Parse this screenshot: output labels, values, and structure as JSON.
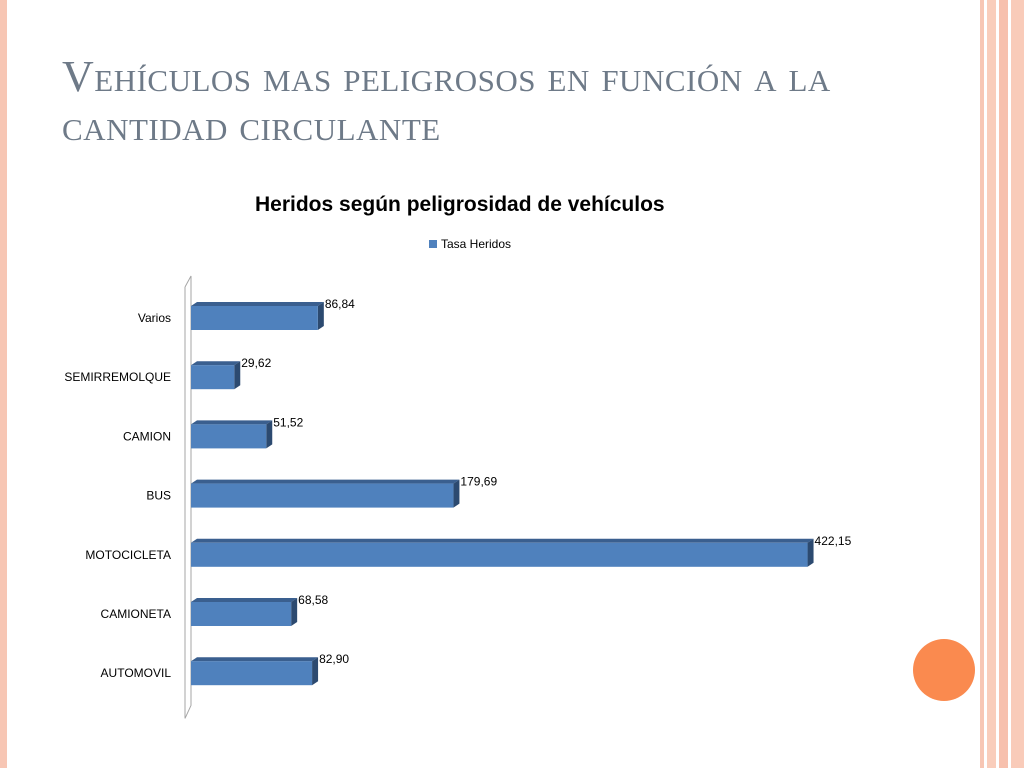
{
  "slide": {
    "title": "Vehículos mas peligrosos en función a la cantidad circulante"
  },
  "colors": {
    "bar": "#4f81bd",
    "bar_top": "#3a5f8f",
    "bar_side": "#2c4a70",
    "accent_circle": "#fa8a4f",
    "title_text": "#6e7a88"
  },
  "chart_data": {
    "type": "bar",
    "orientation": "horizontal",
    "title": "Heridos según peligrosidad de vehículos",
    "categories": [
      "AUTOMOVIL",
      "CAMIONETA",
      "MOTOCICLETA",
      "BUS",
      "CAMION",
      "SEMIRREMOLQUE",
      "Varios"
    ],
    "series": [
      {
        "name": "Tasa Heridos",
        "values": [
          82.9,
          68.58,
          422.15,
          179.69,
          51.52,
          29.62,
          86.84
        ],
        "labels": [
          "82,90",
          "68,58",
          "422,15",
          "179,69",
          "51,52",
          "29,62",
          "86,84"
        ]
      }
    ],
    "xlim": [
      0,
      450
    ],
    "legend": "top",
    "grid": false
  }
}
